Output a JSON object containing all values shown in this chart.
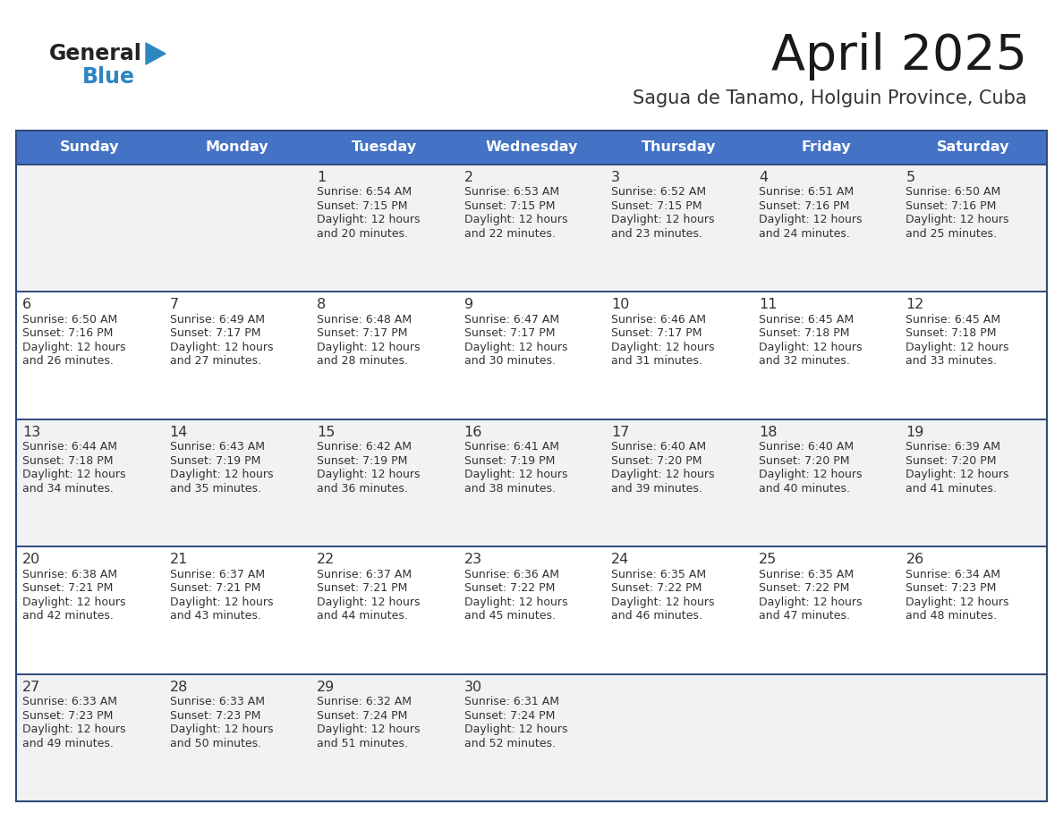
{
  "title": "April 2025",
  "subtitle": "Sagua de Tanamo, Holguin Province, Cuba",
  "header_bg_color": "#4472C4",
  "header_text_color": "#FFFFFF",
  "cell_bg_even": "#F2F2F2",
  "cell_bg_odd": "#FFFFFF",
  "separator_color": "#2E4A7A",
  "text_color": "#333333",
  "days_of_week": [
    "Sunday",
    "Monday",
    "Tuesday",
    "Wednesday",
    "Thursday",
    "Friday",
    "Saturday"
  ],
  "logo_general_color": "#222222",
  "logo_blue_color": "#2E86C1",
  "weeks": [
    [
      {
        "day": "",
        "sunrise": "",
        "sunset": "",
        "daylight": ""
      },
      {
        "day": "",
        "sunrise": "",
        "sunset": "",
        "daylight": ""
      },
      {
        "day": "1",
        "sunrise": "6:54 AM",
        "sunset": "7:15 PM",
        "daylight": "12 hours and 20 minutes."
      },
      {
        "day": "2",
        "sunrise": "6:53 AM",
        "sunset": "7:15 PM",
        "daylight": "12 hours and 22 minutes."
      },
      {
        "day": "3",
        "sunrise": "6:52 AM",
        "sunset": "7:15 PM",
        "daylight": "12 hours and 23 minutes."
      },
      {
        "day": "4",
        "sunrise": "6:51 AM",
        "sunset": "7:16 PM",
        "daylight": "12 hours and 24 minutes."
      },
      {
        "day": "5",
        "sunrise": "6:50 AM",
        "sunset": "7:16 PM",
        "daylight": "12 hours and 25 minutes."
      }
    ],
    [
      {
        "day": "6",
        "sunrise": "6:50 AM",
        "sunset": "7:16 PM",
        "daylight": "12 hours and 26 minutes."
      },
      {
        "day": "7",
        "sunrise": "6:49 AM",
        "sunset": "7:17 PM",
        "daylight": "12 hours and 27 minutes."
      },
      {
        "day": "8",
        "sunrise": "6:48 AM",
        "sunset": "7:17 PM",
        "daylight": "12 hours and 28 minutes."
      },
      {
        "day": "9",
        "sunrise": "6:47 AM",
        "sunset": "7:17 PM",
        "daylight": "12 hours and 30 minutes."
      },
      {
        "day": "10",
        "sunrise": "6:46 AM",
        "sunset": "7:17 PM",
        "daylight": "12 hours and 31 minutes."
      },
      {
        "day": "11",
        "sunrise": "6:45 AM",
        "sunset": "7:18 PM",
        "daylight": "12 hours and 32 minutes."
      },
      {
        "day": "12",
        "sunrise": "6:45 AM",
        "sunset": "7:18 PM",
        "daylight": "12 hours and 33 minutes."
      }
    ],
    [
      {
        "day": "13",
        "sunrise": "6:44 AM",
        "sunset": "7:18 PM",
        "daylight": "12 hours and 34 minutes."
      },
      {
        "day": "14",
        "sunrise": "6:43 AM",
        "sunset": "7:19 PM",
        "daylight": "12 hours and 35 minutes."
      },
      {
        "day": "15",
        "sunrise": "6:42 AM",
        "sunset": "7:19 PM",
        "daylight": "12 hours and 36 minutes."
      },
      {
        "day": "16",
        "sunrise": "6:41 AM",
        "sunset": "7:19 PM",
        "daylight": "12 hours and 38 minutes."
      },
      {
        "day": "17",
        "sunrise": "6:40 AM",
        "sunset": "7:20 PM",
        "daylight": "12 hours and 39 minutes."
      },
      {
        "day": "18",
        "sunrise": "6:40 AM",
        "sunset": "7:20 PM",
        "daylight": "12 hours and 40 minutes."
      },
      {
        "day": "19",
        "sunrise": "6:39 AM",
        "sunset": "7:20 PM",
        "daylight": "12 hours and 41 minutes."
      }
    ],
    [
      {
        "day": "20",
        "sunrise": "6:38 AM",
        "sunset": "7:21 PM",
        "daylight": "12 hours and 42 minutes."
      },
      {
        "day": "21",
        "sunrise": "6:37 AM",
        "sunset": "7:21 PM",
        "daylight": "12 hours and 43 minutes."
      },
      {
        "day": "22",
        "sunrise": "6:37 AM",
        "sunset": "7:21 PM",
        "daylight": "12 hours and 44 minutes."
      },
      {
        "day": "23",
        "sunrise": "6:36 AM",
        "sunset": "7:22 PM",
        "daylight": "12 hours and 45 minutes."
      },
      {
        "day": "24",
        "sunrise": "6:35 AM",
        "sunset": "7:22 PM",
        "daylight": "12 hours and 46 minutes."
      },
      {
        "day": "25",
        "sunrise": "6:35 AM",
        "sunset": "7:22 PM",
        "daylight": "12 hours and 47 minutes."
      },
      {
        "day": "26",
        "sunrise": "6:34 AM",
        "sunset": "7:23 PM",
        "daylight": "12 hours and 48 minutes."
      }
    ],
    [
      {
        "day": "27",
        "sunrise": "6:33 AM",
        "sunset": "7:23 PM",
        "daylight": "12 hours and 49 minutes."
      },
      {
        "day": "28",
        "sunrise": "6:33 AM",
        "sunset": "7:23 PM",
        "daylight": "12 hours and 50 minutes."
      },
      {
        "day": "29",
        "sunrise": "6:32 AM",
        "sunset": "7:24 PM",
        "daylight": "12 hours and 51 minutes."
      },
      {
        "day": "30",
        "sunrise": "6:31 AM",
        "sunset": "7:24 PM",
        "daylight": "12 hours and 52 minutes."
      },
      {
        "day": "",
        "sunrise": "",
        "sunset": "",
        "daylight": ""
      },
      {
        "day": "",
        "sunrise": "",
        "sunset": "",
        "daylight": ""
      },
      {
        "day": "",
        "sunrise": "",
        "sunset": "",
        "daylight": ""
      }
    ]
  ]
}
